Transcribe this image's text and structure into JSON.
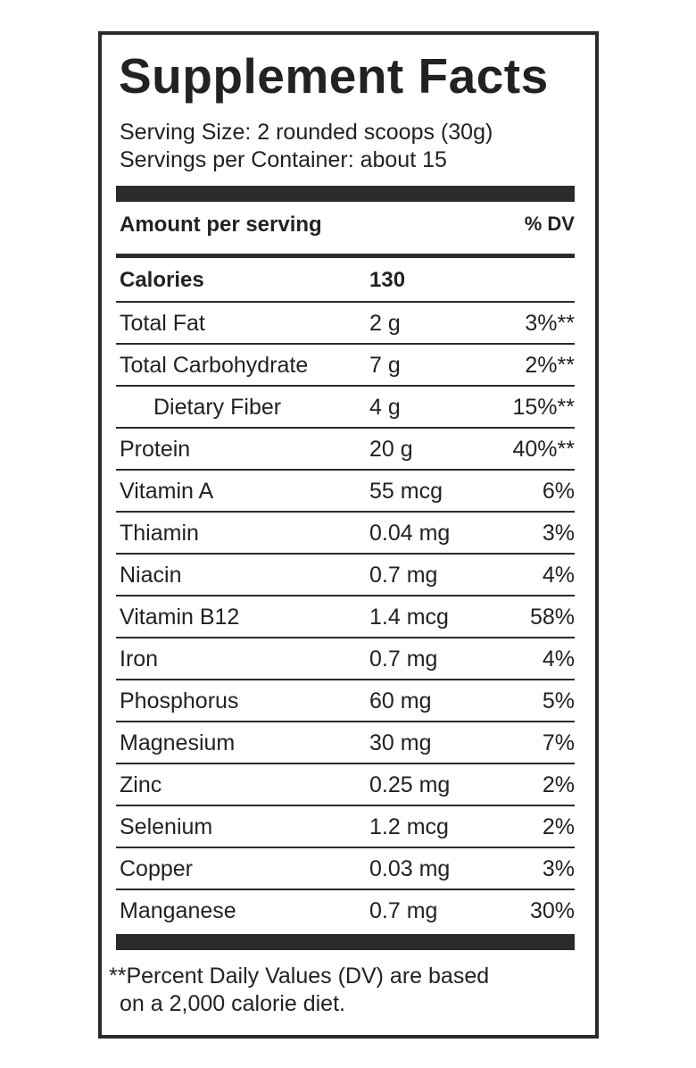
{
  "title": "Supplement Facts",
  "serving": [
    "Serving Size: 2 rounded scoops (30g)",
    "Servings per Container: about 15"
  ],
  "table": {
    "header": [
      "Amount per serving",
      "% DV"
    ],
    "rows": [
      [
        "Calories",
        "130"
      ],
      [
        "Total Fat",
        "2 g",
        "3%**"
      ],
      [
        "Total Carbohydrate",
        "7 g",
        "2%**"
      ],
      [
        "Dietary Fiber",
        "4 g",
        "15%**"
      ],
      [
        "Protein",
        "20 g",
        "40%**"
      ],
      [
        "Vitamin A",
        "55 mcg",
        "6%"
      ],
      [
        "Thiamin",
        "0.04 mg",
        "3%"
      ],
      [
        "Niacin",
        "0.7 mg",
        "4%"
      ],
      [
        "Vitamin B12",
        "1.4 mcg",
        "58%"
      ],
      [
        "Iron",
        "0.7 mg",
        "4%"
      ],
      [
        "Phosphorus",
        "60 mg",
        "5%"
      ],
      [
        "Magnesium",
        "30 mg",
        "7%"
      ],
      [
        "Zinc",
        "0.25 mg",
        "2%"
      ],
      [
        "Selenium",
        "1.2 mcg",
        "2%"
      ],
      [
        "Copper",
        "0.03 mg",
        "3%"
      ],
      [
        "Manganese",
        "0.7 mg",
        "30%"
      ]
    ]
  },
  "footnote": [
    "**Percent Daily Values (DV) are based",
    "on a 2,000 calorie diet."
  ]
}
